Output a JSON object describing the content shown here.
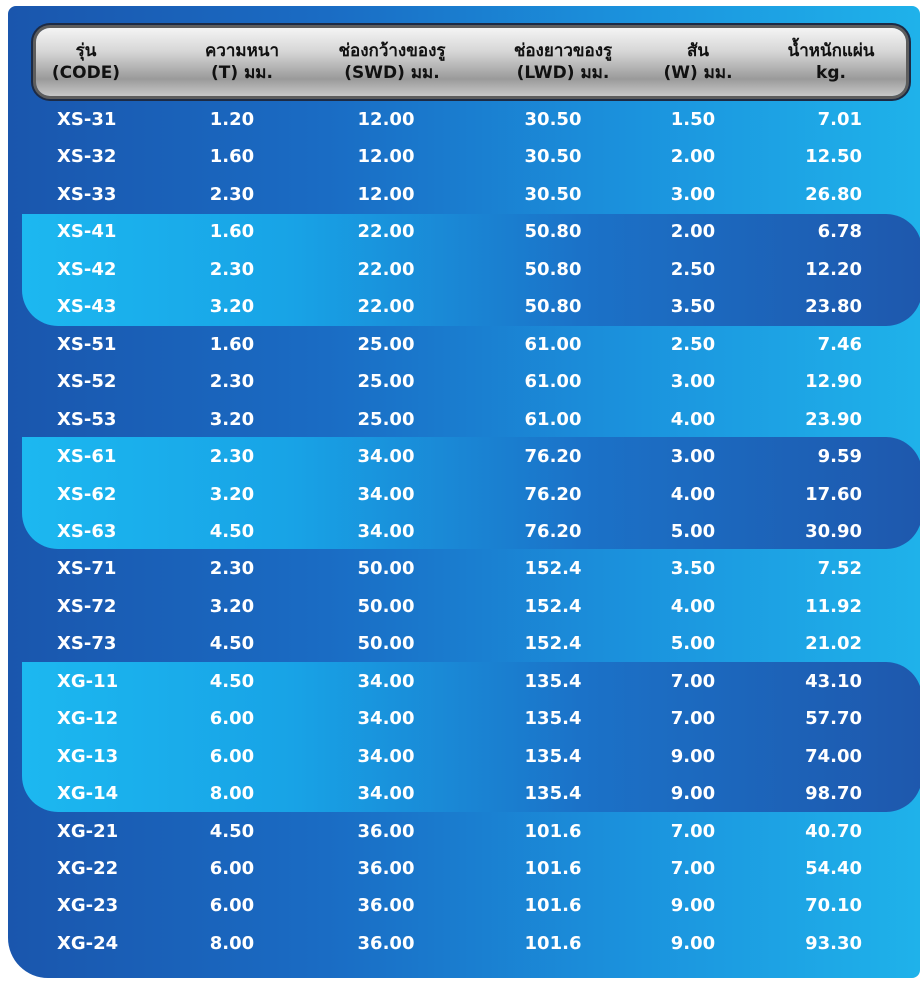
{
  "headers": [
    {
      "line1": "รุ่น",
      "line2": "(CODE)"
    },
    {
      "line1": "ความหนา",
      "line2": "(T) มม."
    },
    {
      "line1": "ช่องกว้างของรู",
      "line2": "(SWD) มม."
    },
    {
      "line1": "ช่องยาวของรู",
      "line2": "(LWD) มม."
    },
    {
      "line1": "สัน",
      "line2": "(W) มม."
    },
    {
      "line1": "น้ำหนักแผ่น",
      "line2": "kg."
    }
  ],
  "rows": [
    [
      "XS-31",
      "1.20",
      "12.00",
      "30.50",
      "1.50",
      "7.01"
    ],
    [
      "XS-32",
      "1.60",
      "12.00",
      "30.50",
      "2.00",
      "12.50"
    ],
    [
      "XS-33",
      "2.30",
      "12.00",
      "30.50",
      "3.00",
      "26.80"
    ],
    [
      "XS-41",
      "1.60",
      "22.00",
      "50.80",
      "2.00",
      "6.78"
    ],
    [
      "XS-42",
      "2.30",
      "22.00",
      "50.80",
      "2.50",
      "12.20"
    ],
    [
      "XS-43",
      "3.20",
      "22.00",
      "50.80",
      "3.50",
      "23.80"
    ],
    [
      "XS-51",
      "1.60",
      "25.00",
      "61.00",
      "2.50",
      "7.46"
    ],
    [
      "XS-52",
      "2.30",
      "25.00",
      "61.00",
      "3.00",
      "12.90"
    ],
    [
      "XS-53",
      "3.20",
      "25.00",
      "61.00",
      "4.00",
      "23.90"
    ],
    [
      "XS-61",
      "2.30",
      "34.00",
      "76.20",
      "3.00",
      "9.59"
    ],
    [
      "XS-62",
      "3.20",
      "34.00",
      "76.20",
      "4.00",
      "17.60"
    ],
    [
      "XS-63",
      "4.50",
      "34.00",
      "76.20",
      "5.00",
      "30.90"
    ],
    [
      "XS-71",
      "2.30",
      "50.00",
      "152.4",
      "3.50",
      "7.52"
    ],
    [
      "XS-72",
      "3.20",
      "50.00",
      "152.4",
      "4.00",
      "11.92"
    ],
    [
      "XS-73",
      "4.50",
      "50.00",
      "152.4",
      "5.00",
      "21.02"
    ],
    [
      "XG-11",
      "4.50",
      "34.00",
      "135.4",
      "7.00",
      "43.10"
    ],
    [
      "XG-12",
      "6.00",
      "34.00",
      "135.4",
      "7.00",
      "57.70"
    ],
    [
      "XG-13",
      "6.00",
      "34.00",
      "135.4",
      "9.00",
      "74.00"
    ],
    [
      "XG-14",
      "8.00",
      "34.00",
      "135.4",
      "9.00",
      "98.70"
    ],
    [
      "XG-21",
      "4.50",
      "36.00",
      "101.6",
      "7.00",
      "40.70"
    ],
    [
      "XG-22",
      "6.00",
      "36.00",
      "101.6",
      "7.00",
      "54.40"
    ],
    [
      "XG-23",
      "6.00",
      "36.00",
      "101.6",
      "9.00",
      "70.10"
    ],
    [
      "XG-24",
      "8.00",
      "36.00",
      "101.6",
      "9.00",
      "93.30"
    ]
  ]
}
